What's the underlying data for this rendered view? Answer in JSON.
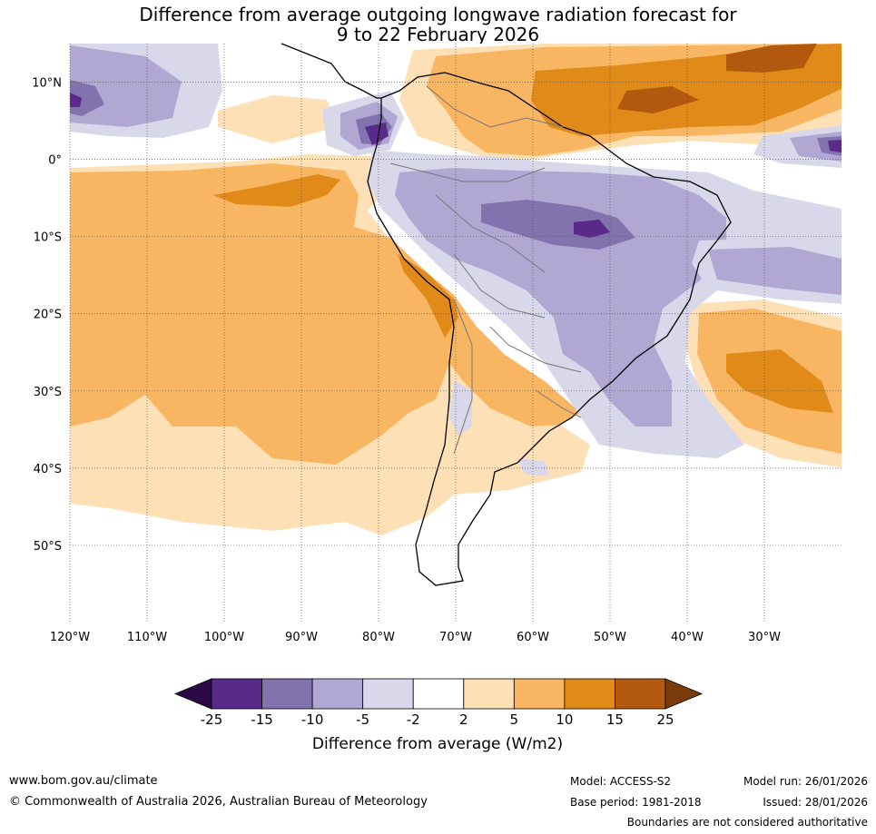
{
  "title": {
    "line1": "Difference from average outgoing longwave radiation forecast for",
    "line2": "9 to 22 February 2026"
  },
  "map": {
    "lon_range": [
      -120,
      -20
    ],
    "lat_range": [
      -60,
      15
    ],
    "lon_ticks": [
      {
        "value": -120,
        "label": "120°W"
      },
      {
        "value": -110,
        "label": "110°W"
      },
      {
        "value": -100,
        "label": "100°W"
      },
      {
        "value": -90,
        "label": "90°W"
      },
      {
        "value": -80,
        "label": "80°W"
      },
      {
        "value": -70,
        "label": "70°W"
      },
      {
        "value": -60,
        "label": "60°W"
      },
      {
        "value": -50,
        "label": "50°W"
      },
      {
        "value": -40,
        "label": "40°W"
      },
      {
        "value": -30,
        "label": "30°W"
      }
    ],
    "lat_ticks": [
      {
        "value": 10,
        "label": "10°N"
      },
      {
        "value": 0,
        "label": "0°"
      },
      {
        "value": -10,
        "label": "10°S"
      },
      {
        "value": -20,
        "label": "20°S"
      },
      {
        "value": -30,
        "label": "30°S"
      },
      {
        "value": -40,
        "label": "40°S"
      },
      {
        "value": -50,
        "label": "50°S"
      }
    ],
    "region": "South America and adjacent Pacific / Atlantic oceans"
  },
  "colorbar": {
    "ticks": [
      "-25",
      "-15",
      "-10",
      "-5",
      "-2",
      "2",
      "5",
      "10",
      "15",
      "25"
    ],
    "colors": [
      "#2d0a45",
      "#5a2a8a",
      "#8272ad",
      "#b0a8d2",
      "#d8d8ea",
      "#ffffff",
      "#fde0b6",
      "#f8b562",
      "#e08a1a",
      "#b3590d",
      "#7a3c0b"
    ],
    "label": "Difference from average (W/m2)"
  },
  "footer": {
    "website": "www.bom.gov.au/climate",
    "copyright": "© Commonwealth of Australia 2026, Australian Bureau of Meteorology",
    "model": "Model: ACCESS-S2",
    "base_period": "Base period: 1981-2018",
    "model_run": "Model run: 26/01/2026",
    "issued": "Issued: 28/01/2026",
    "disclaimer": "Boundaries are not considered authoritative"
  }
}
